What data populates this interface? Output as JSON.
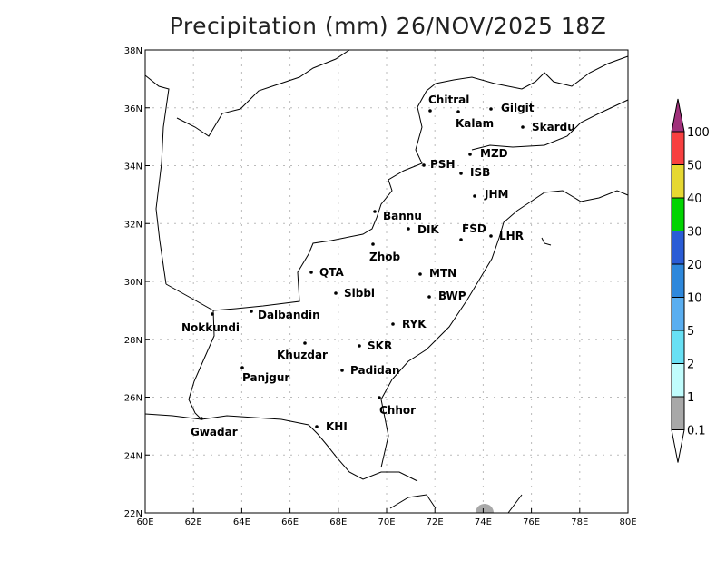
{
  "title": "Precipitation (mm) 26/NOV/2025 18Z",
  "axes": {
    "lon_ticks": [
      "60E",
      "62E",
      "64E",
      "66E",
      "68E",
      "70E",
      "72E",
      "74E",
      "76E",
      "78E",
      "80E"
    ],
    "lat_ticks": [
      "38N",
      "36N",
      "34N",
      "32N",
      "30N",
      "28N",
      "26N",
      "24N",
      "22N"
    ]
  },
  "cities": [
    "Chitral",
    "Kalam",
    "Gilgit",
    "Skardu",
    "MZD",
    "PSH",
    "ISB",
    "JHM",
    "Bannu",
    "DIK",
    "FSD",
    "LHR",
    "Zhob",
    "QTA",
    "MTN",
    "Sibbi",
    "BWP",
    "Nokkundi",
    "Dalbandin",
    "RYK",
    "Khuzdar",
    "SKR",
    "Panjgur",
    "Padidan",
    "Chhor",
    "Gwadar",
    "KHI"
  ],
  "colorbar": {
    "labels": [
      "100",
      "50",
      "40",
      "30",
      "20",
      "10",
      "5",
      "2",
      "1",
      "0.1"
    ],
    "colors": [
      "#a0307a",
      "#f84040",
      "#e6d832",
      "#00d400",
      "#2a5cd6",
      "#2e88dc",
      "#5aaef0",
      "#68e0f4",
      "#c0fcfc",
      "#a8a8a8",
      "#ffffff"
    ]
  },
  "precip_color": "#a8a8a8"
}
